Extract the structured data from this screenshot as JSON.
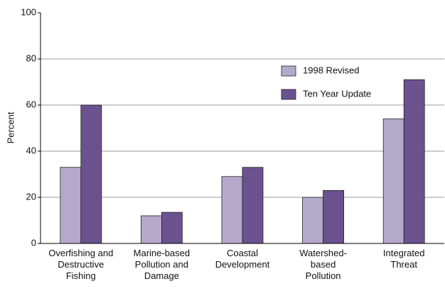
{
  "chart_data": {
    "type": "bar",
    "y_label": "Percent",
    "categories": [
      "Overfishing and\nDestructive\nFishing",
      "Marine-based\nPollution and\nDamage",
      "Coastal\nDevelopment",
      "Watershed-\nbased\nPollution",
      "Integrated\nThreat"
    ],
    "series": [
      {
        "name": "1998 Revised",
        "color": "#b5a9cb",
        "values": [
          33,
          12,
          29,
          20,
          54
        ]
      },
      {
        "name": "Ten Year Update",
        "color": "#6b528f",
        "values": [
          60,
          13.5,
          33,
          23,
          71
        ]
      }
    ],
    "ylim": [
      0,
      100
    ],
    "yticks": [
      0,
      20,
      40,
      60,
      80,
      100
    ],
    "grid": true,
    "legend": "upper right"
  }
}
